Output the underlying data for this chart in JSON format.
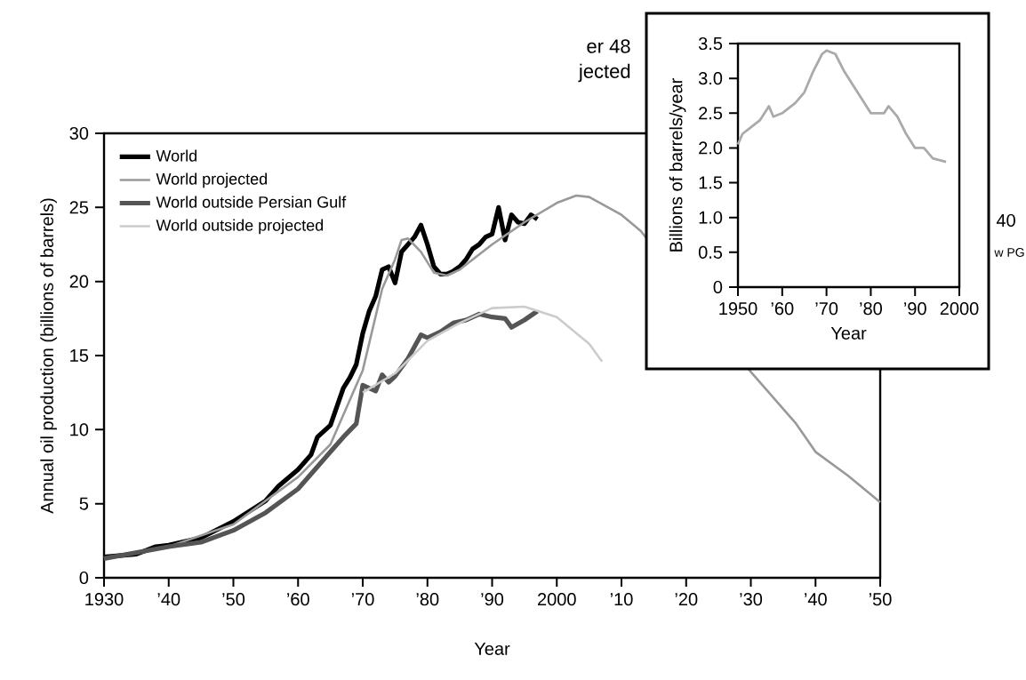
{
  "chart_data": [
    {
      "type": "line",
      "xlabel": "Year",
      "ylabel": "Annual oil production (billions of barrels)",
      "xlim": [
        1930,
        2050
      ],
      "ylim": [
        0,
        30
      ],
      "xticks": [
        1930,
        {
          "value": 1940,
          "label": "’40"
        },
        {
          "value": 1950,
          "label": "’50"
        },
        {
          "value": 1960,
          "label": "’60"
        },
        {
          "value": 1970,
          "label": "’70"
        },
        {
          "value": 1980,
          "label": "’80"
        },
        {
          "value": 1990,
          "label": "’90"
        },
        2000,
        {
          "value": 2010,
          "label": "’10"
        },
        {
          "value": 2020,
          "label": "’20"
        },
        {
          "value": 2030,
          "label": "’30"
        },
        {
          "value": 2040,
          "label": "’40"
        },
        {
          "value": 2050,
          "label": "’50"
        }
      ],
      "yticks": [
        0,
        5,
        10,
        15,
        20,
        25,
        30
      ],
      "legend": "top left",
      "annotations": [
        "er 48",
        "jected"
      ],
      "series": [
        {
          "name": "World",
          "color": "#000000",
          "x": [
            1930,
            1935,
            1938,
            1940,
            1945,
            1950,
            1955,
            1957,
            1960,
            1962,
            1963,
            1965,
            1967,
            1968,
            1969,
            1970,
            1971,
            1972,
            1973,
            1974,
            1975,
            1976,
            1977,
            1978,
            1979,
            1980,
            1981,
            1982,
            1983,
            1984,
            1985,
            1986,
            1987,
            1988,
            1989,
            1990,
            1991,
            1992,
            1993,
            1994,
            1995,
            1996,
            1997
          ],
          "values": [
            1.4,
            1.6,
            2.1,
            2.2,
            2.7,
            3.8,
            5.2,
            6.2,
            7.3,
            8.3,
            9.5,
            10.3,
            12.8,
            13.5,
            14.4,
            16.5,
            18.0,
            19.0,
            20.8,
            21.0,
            19.9,
            22.0,
            22.5,
            23.0,
            23.8,
            22.5,
            21.0,
            20.5,
            20.5,
            20.7,
            21.0,
            21.5,
            22.2,
            22.5,
            23.0,
            23.2,
            25.0,
            22.8,
            24.5,
            24.0,
            23.9,
            24.5,
            24.2
          ]
        },
        {
          "name": "World projected",
          "color": "#999999",
          "x": [
            1930,
            1940,
            1950,
            1960,
            1965,
            1970,
            1973,
            1975,
            1976,
            1977,
            1979,
            1981,
            1983,
            1985,
            1990,
            1995,
            2000,
            2003,
            2005,
            2010,
            2013,
            2030,
            2037,
            2040,
            2045,
            2050
          ],
          "values": [
            1.3,
            2.1,
            3.6,
            6.8,
            9.0,
            14.0,
            19.5,
            21.5,
            22.8,
            22.9,
            22.0,
            20.6,
            20.4,
            20.8,
            22.5,
            24.0,
            25.3,
            25.8,
            25.7,
            24.5,
            23.4,
            13.9,
            10.4,
            8.5,
            6.9,
            5.1
          ]
        },
        {
          "name": "World outside Persian Gulf",
          "color": "#555555",
          "x": [
            1930,
            1940,
            1945,
            1950,
            1955,
            1960,
            1963,
            1965,
            1967,
            1969,
            1970,
            1971,
            1972,
            1973,
            1974,
            1975,
            1977,
            1979,
            1980,
            1982,
            1984,
            1986,
            1988,
            1990,
            1992,
            1993,
            1995,
            1997
          ],
          "values": [
            1.3,
            2.1,
            2.4,
            3.2,
            4.4,
            6.0,
            7.5,
            8.5,
            9.5,
            10.4,
            13.0,
            12.8,
            12.6,
            13.7,
            13.2,
            13.6,
            14.8,
            16.4,
            16.2,
            16.6,
            17.2,
            17.4,
            17.8,
            17.6,
            17.5,
            16.9,
            17.4,
            18.0
          ]
        },
        {
          "name": "World outside projected",
          "color": "#cccccc",
          "x": [
            1970,
            1975,
            1980,
            1985,
            1990,
            1995,
            2000,
            2005,
            2007
          ],
          "values": [
            12.5,
            13.8,
            16.0,
            17.2,
            18.2,
            18.3,
            17.6,
            15.8,
            14.6
          ]
        }
      ]
    },
    {
      "type": "line",
      "xlabel": "Year",
      "ylabel": "Billions of barrels/year",
      "xlim": [
        1950,
        2000
      ],
      "ylim": [
        0,
        3.5
      ],
      "xticks": [
        1950,
        {
          "value": 1960,
          "label": "’60"
        },
        {
          "value": 1970,
          "label": "’70"
        },
        {
          "value": 1980,
          "label": "’80"
        },
        {
          "value": 1990,
          "label": "’90"
        },
        2000
      ],
      "yticks": [
        0,
        0.5,
        {
          "value": 1,
          "label": "1.0"
        },
        1.5,
        {
          "value": 2,
          "label": "2.0"
        },
        2.5,
        {
          "value": 3,
          "label": "3.0"
        },
        3.5
      ],
      "annotations": [
        "40",
        "w PG"
      ],
      "series": [
        {
          "color": "#aaaaaa",
          "x": [
            1950,
            1951,
            1953,
            1955,
            1957,
            1958,
            1960,
            1963,
            1965,
            1967,
            1969,
            1970,
            1972,
            1974,
            1976,
            1978,
            1980,
            1983,
            1984,
            1986,
            1988,
            1990,
            1992,
            1994,
            1997
          ],
          "values": [
            2.05,
            2.2,
            2.3,
            2.4,
            2.6,
            2.45,
            2.5,
            2.65,
            2.8,
            3.1,
            3.35,
            3.4,
            3.35,
            3.1,
            2.9,
            2.7,
            2.5,
            2.5,
            2.6,
            2.45,
            2.2,
            2.0,
            2.0,
            1.85,
            1.8
          ]
        }
      ]
    }
  ]
}
